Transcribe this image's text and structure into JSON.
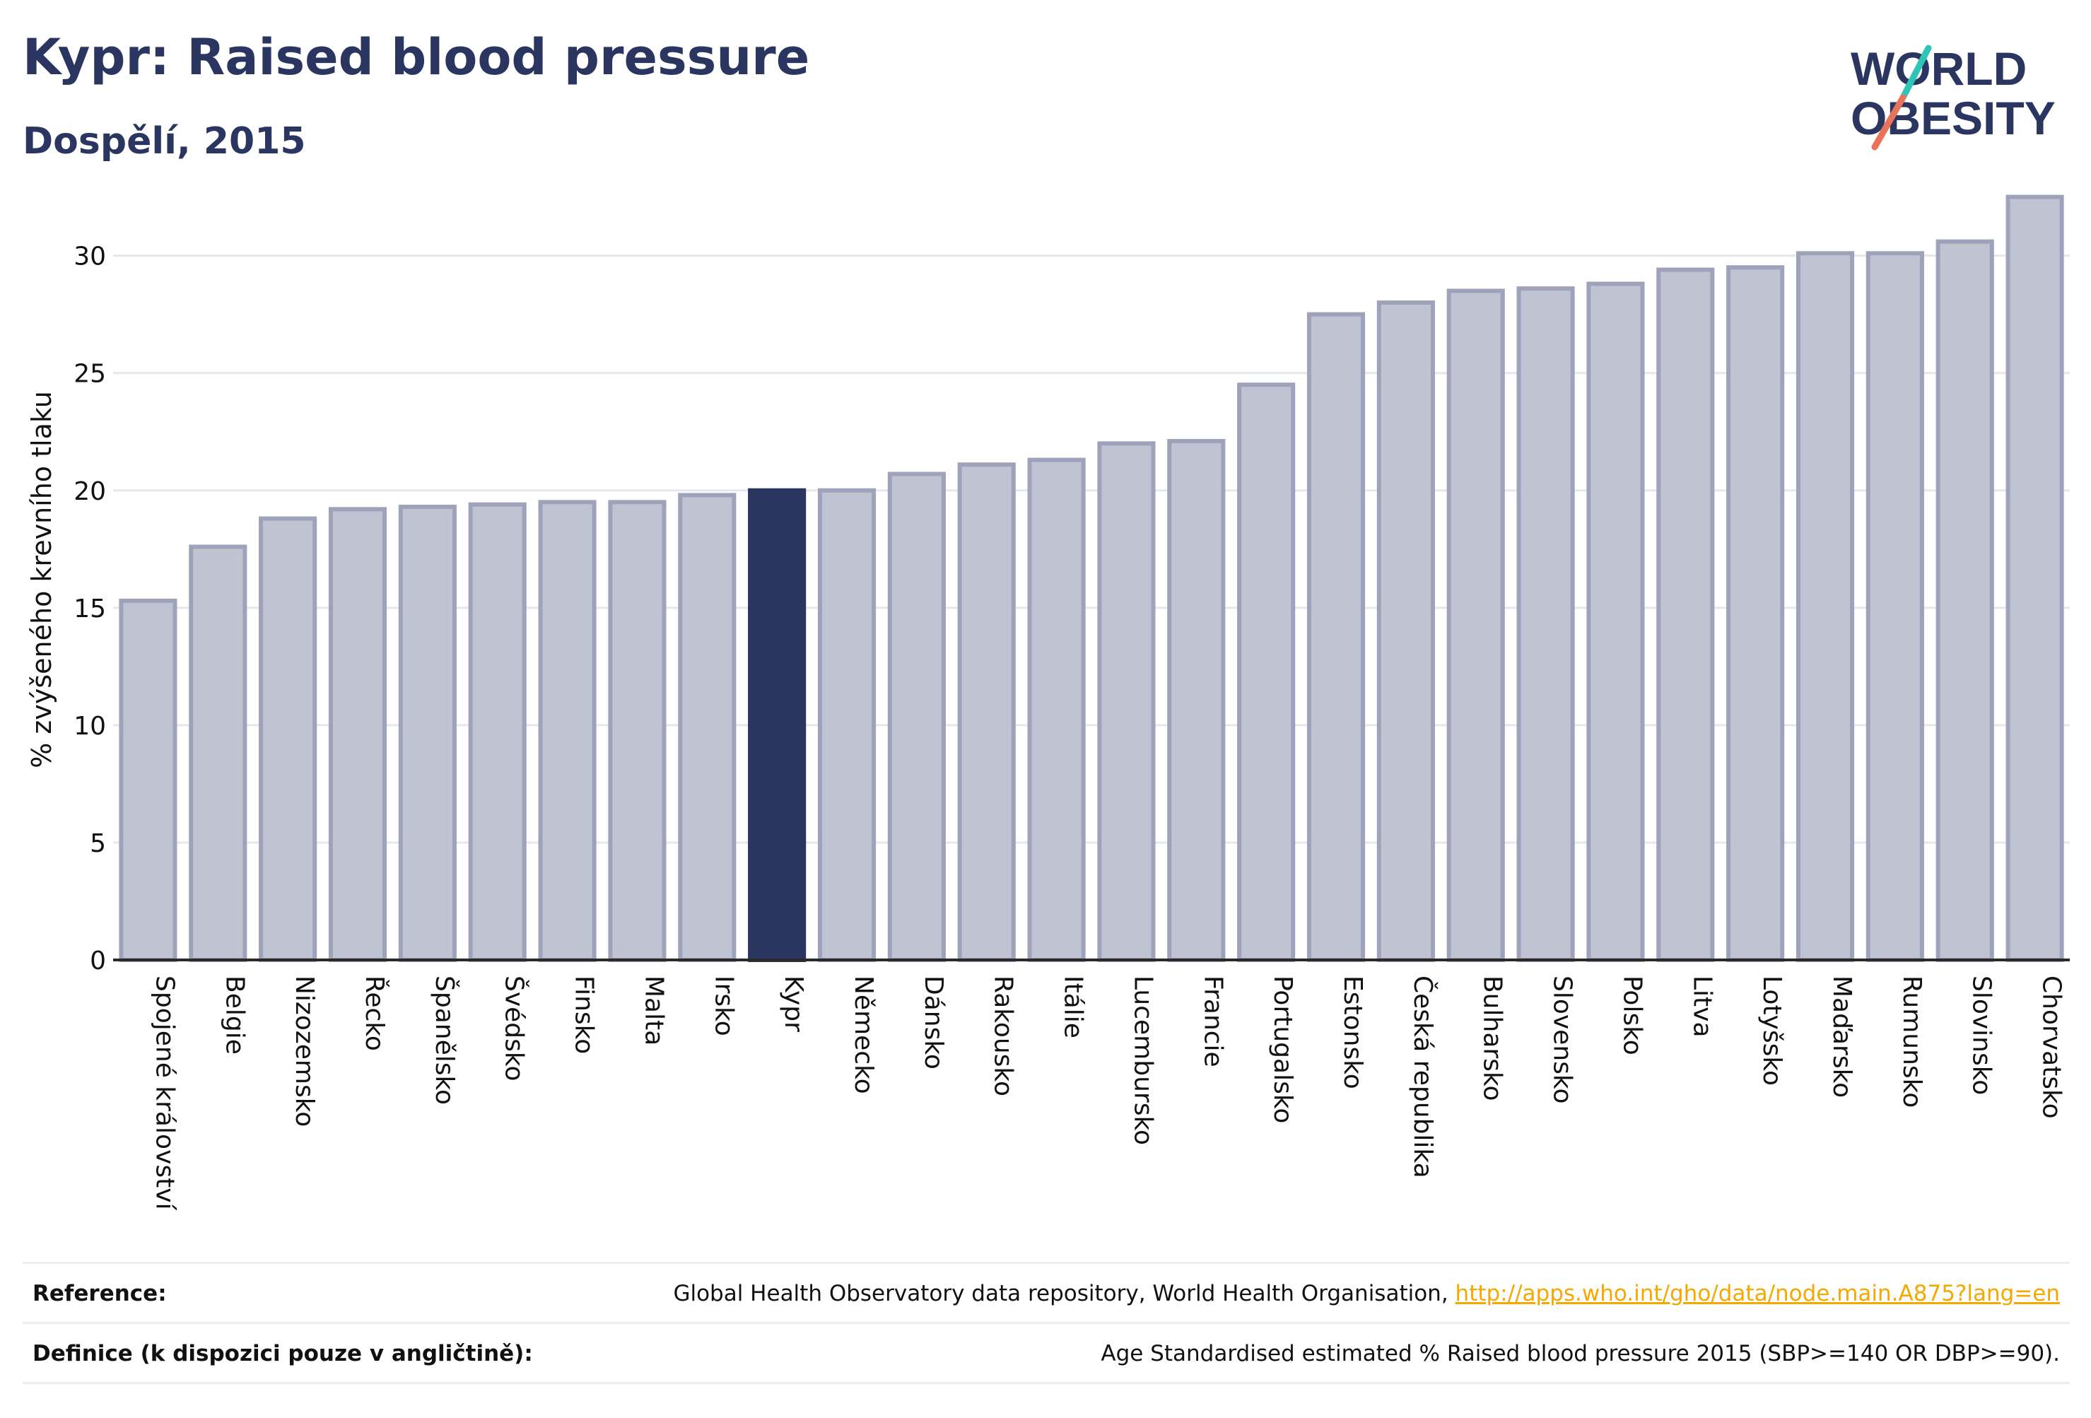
{
  "header": {
    "title": "Kypr: Raised blood pressure",
    "subtitle": "Dospělí, 2015"
  },
  "logo": {
    "line1": "WORLD",
    "line2": "OBESITY",
    "accent_teal": "#2ec4b6",
    "accent_coral": "#e8735a"
  },
  "colors": {
    "highlight": "#2a3560",
    "bar_fill": "#c0c3d1",
    "bar_stroke": "#9ea3bb",
    "grid": "#e6e7ec",
    "text": "#111111"
  },
  "chart_data": {
    "type": "bar",
    "title": "Kypr: Raised blood pressure",
    "subtitle": "Dospělí, 2015",
    "ylabel": "% zvýšeného krevního tlaku",
    "xlabel": "",
    "ylim": [
      0,
      33
    ],
    "yticks": [
      0,
      5,
      10,
      15,
      20,
      25,
      30
    ],
    "highlight_category": "Kypr",
    "grid": true,
    "categories": [
      "Spojené království",
      "Belgie",
      "Nizozemsko",
      "Řecko",
      "Španělsko",
      "Švédsko",
      "Finsko",
      "Malta",
      "Irsko",
      "Kypr",
      "Německo",
      "Dánsko",
      "Rakousko",
      "Itálie",
      "Lucembursko",
      "Francie",
      "Portugalsko",
      "Estonsko",
      "Česká republika",
      "Bulharsko",
      "Slovensko",
      "Polsko",
      "Litva",
      "Lotyšsko",
      "Maďarsko",
      "Rumunsko",
      "Slovinsko",
      "Chorvatsko"
    ],
    "values": [
      15.3,
      17.6,
      18.8,
      19.2,
      19.3,
      19.4,
      19.5,
      19.5,
      19.8,
      20.0,
      20.0,
      20.7,
      21.1,
      21.3,
      22.0,
      22.1,
      24.5,
      27.5,
      28.0,
      28.5,
      28.6,
      28.8,
      29.4,
      29.5,
      30.1,
      30.1,
      30.6,
      32.5
    ]
  },
  "references": {
    "reference_label": "Reference:",
    "reference_text": "Global Health Observatory data repository, World Health Organisation, ",
    "reference_link": "http://apps.who.int/gho/data/node.main.A875?lang=en",
    "definition_label": "Definice (k dispozici pouze v angličtině):",
    "definition_text": "Age Standardised estimated % Raised blood pressure 2015 (SBP>=140 OR DBP>=90)."
  }
}
